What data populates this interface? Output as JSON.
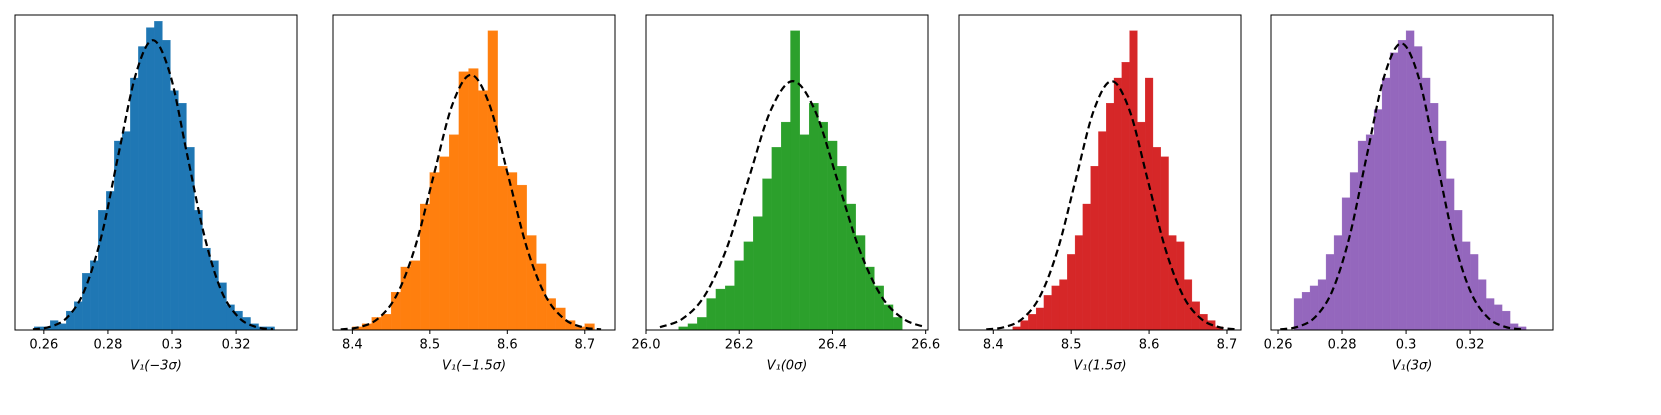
{
  "chart_data": [
    {
      "type": "histogram",
      "color": "#1f77b4",
      "xlabel": "V₁(−3σ)",
      "xlim": [
        0.251,
        0.339
      ],
      "ylim": [
        0,
        100
      ],
      "xticks": [
        0.26,
        0.28,
        0.3,
        0.32
      ],
      "bins": [
        0.257,
        0.2595,
        0.262,
        0.2645,
        0.267,
        0.2695,
        0.272,
        0.2745,
        0.277,
        0.2795,
        0.282,
        0.2845,
        0.287,
        0.2895,
        0.292,
        0.2945,
        0.297,
        0.2995,
        0.302,
        0.3045,
        0.307,
        0.3095,
        0.312,
        0.3145,
        0.317,
        0.3195,
        0.322,
        0.3245,
        0.327,
        0.3295,
        0.332
      ],
      "counts": [
        1,
        1,
        3,
        2,
        6,
        9,
        18,
        22,
        38,
        44,
        60,
        63,
        80,
        90,
        96,
        98,
        92,
        76,
        72,
        58,
        38,
        26,
        22,
        15,
        8,
        6,
        4,
        2,
        1,
        1
      ],
      "curve": {
        "color": "#000000",
        "x": [
          0.2566,
          0.2619,
          0.2673,
          0.2726,
          0.278,
          0.2833,
          0.2887,
          0.294,
          0.2994,
          0.3047,
          0.3101,
          0.3154,
          0.3208,
          0.3261,
          0.3315
        ],
        "values": [
          0.2,
          1.0,
          4.0,
          12.4,
          29.9,
          55.8,
          81.2,
          92,
          81.2,
          55.8,
          29.9,
          12.4,
          4.0,
          1.0,
          0.2
        ]
      }
    },
    {
      "type": "histogram",
      "color": "#ff7f0e",
      "xlabel": "V₁(−1.5σ)",
      "xlim": [
        8.375,
        8.739
      ],
      "ylim": [
        0,
        100
      ],
      "xticks": [
        8.4,
        8.5,
        8.6,
        8.7
      ],
      "bins": [
        8.4,
        8.4125,
        8.425,
        8.4375,
        8.45,
        8.4625,
        8.475,
        8.4875,
        8.5,
        8.5125,
        8.525,
        8.5375,
        8.55,
        8.5625,
        8.575,
        8.5875,
        8.6,
        8.6125,
        8.625,
        8.6375,
        8.65,
        8.6625,
        8.675,
        8.6875,
        8.7,
        8.7125
      ],
      "counts": [
        1,
        2,
        4,
        5,
        12,
        20,
        22,
        40,
        50,
        55,
        62,
        82,
        83,
        76,
        95,
        52,
        50,
        46,
        30,
        21,
        10,
        7,
        3,
        1,
        2
      ],
      "curve": {
        "color": "#000000",
        "x": [
          8.385,
          8.409,
          8.433,
          8.457,
          8.481,
          8.505,
          8.529,
          8.553,
          8.577,
          8.601,
          8.625,
          8.649,
          8.673,
          8.697,
          8.721
        ],
        "values": [
          0.2,
          0.9,
          3.6,
          11.0,
          26.3,
          49.1,
          71.5,
          81,
          71.5,
          49.1,
          26.3,
          11.0,
          3.6,
          0.9,
          0.2
        ]
      }
    },
    {
      "type": "histogram",
      "color": "#2ca02c",
      "xlabel": "V₁(0σ)",
      "xlim": [
        26.0,
        26.605
      ],
      "ylim": [
        0,
        100
      ],
      "xticks": [
        {
          "value": 26,
          "label": "26.0"
        },
        26.2,
        26.4,
        26.6
      ],
      "bins": [
        26.07,
        26.09,
        26.11,
        26.13,
        26.15,
        26.17,
        26.19,
        26.21,
        26.23,
        26.25,
        26.27,
        26.29,
        26.31,
        26.33,
        26.35,
        26.37,
        26.39,
        26.41,
        26.43,
        26.45,
        26.47,
        26.49,
        26.51,
        26.53,
        26.55
      ],
      "counts": [
        1,
        2,
        4,
        10,
        13,
        14,
        22,
        28,
        36,
        48,
        58,
        66,
        95,
        62,
        72,
        66,
        60,
        52,
        40,
        30,
        20,
        14,
        8,
        4
      ],
      "curve": {
        "color": "#000000",
        "x": [
          26.03,
          26.0775,
          26.125,
          26.1725,
          26.22,
          26.2675,
          26.315,
          26.3625,
          26.41,
          26.4575,
          26.505,
          26.5525,
          26.6
        ],
        "values": [
          0.9,
          3.5,
          10.7,
          25.7,
          47.9,
          69.7,
          79,
          69.7,
          47.9,
          25.7,
          10.7,
          3.5,
          0.9
        ]
      }
    },
    {
      "type": "histogram",
      "color": "#d62728",
      "xlabel": "V₁(1.5σ)",
      "xlim": [
        8.356,
        8.718
      ],
      "ylim": [
        0,
        100
      ],
      "xticks": [
        8.4,
        8.5,
        8.6,
        8.7
      ],
      "bins": [
        8.425,
        8.435,
        8.445,
        8.455,
        8.465,
        8.475,
        8.485,
        8.495,
        8.505,
        8.515,
        8.525,
        8.535,
        8.545,
        8.555,
        8.565,
        8.575,
        8.585,
        8.595,
        8.605,
        8.615,
        8.625,
        8.635,
        8.645,
        8.655,
        8.665,
        8.675,
        8.685,
        8.695
      ],
      "counts": [
        1,
        3,
        5,
        7,
        11,
        14,
        16,
        24,
        30,
        40,
        52,
        63,
        72,
        80,
        85,
        95,
        66,
        80,
        58,
        55,
        30,
        28,
        16,
        9,
        5,
        3,
        1
      ],
      "curve": {
        "color": "#000000",
        "x": [
          8.391,
          8.414,
          8.437,
          8.46,
          8.483,
          8.506,
          8.529,
          8.552,
          8.575,
          8.598,
          8.621,
          8.644,
          8.667,
          8.69,
          8.713
        ],
        "values": [
          0.2,
          0.9,
          3.5,
          10.7,
          25.7,
          47.9,
          69.7,
          79,
          69.7,
          47.9,
          25.7,
          10.7,
          3.5,
          0.9,
          0.2
        ]
      }
    },
    {
      "type": "histogram",
      "color": "#9467bd",
      "xlabel": "V₁(3σ)",
      "xlim": [
        0.2578,
        0.3459
      ],
      "ylim": [
        0,
        100
      ],
      "xticks": [
        0.26,
        0.28,
        0.3,
        0.32
      ],
      "bins": [
        0.265,
        0.2675,
        0.27,
        0.2725,
        0.275,
        0.2775,
        0.28,
        0.2825,
        0.285,
        0.2875,
        0.29,
        0.2925,
        0.295,
        0.2975,
        0.3,
        0.3025,
        0.305,
        0.3075,
        0.31,
        0.3125,
        0.315,
        0.3175,
        0.32,
        0.3225,
        0.325,
        0.3275,
        0.33,
        0.3325,
        0.335,
        0.3375
      ],
      "counts": [
        10,
        12,
        14,
        16,
        24,
        30,
        42,
        50,
        60,
        62,
        70,
        80,
        88,
        92,
        95,
        90,
        80,
        72,
        60,
        48,
        38,
        28,
        24,
        16,
        10,
        8,
        6,
        2,
        1
      ],
      "curve": {
        "color": "#000000",
        "x": [
          0.2607,
          0.2661,
          0.2715,
          0.2769,
          0.2823,
          0.2877,
          0.2931,
          0.2985,
          0.3039,
          0.3093,
          0.3147,
          0.3201,
          0.3255,
          0.3309,
          0.3363
        ],
        "values": [
          0.2,
          1.0,
          4.0,
          12.3,
          29.5,
          55.2,
          80.3,
          91,
          80.3,
          55.2,
          29.5,
          12.3,
          4.0,
          1.0,
          0.2
        ]
      }
    }
  ]
}
